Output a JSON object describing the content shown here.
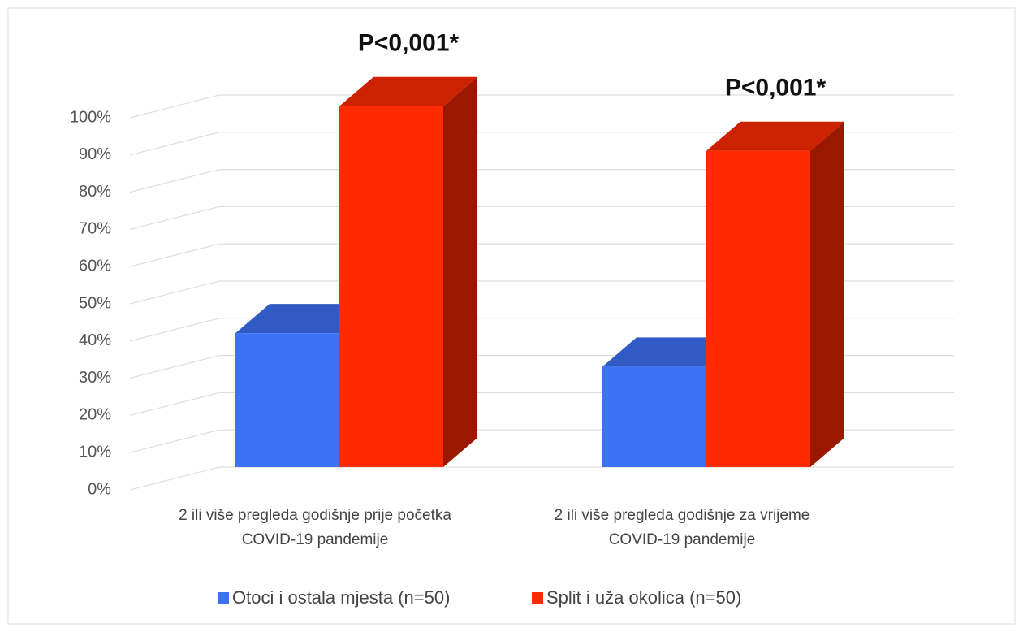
{
  "chart_data": {
    "type": "bar3d",
    "categories": [
      "2 ili više pregleda godišnje prije početka COVID-19 pandemije",
      "2 ili više pregleda godišnje za vrijeme COVID-19 pandemije"
    ],
    "series": [
      {
        "name": "Otoci i ostala mjesta (n=50)",
        "color": "#3d72f5",
        "values": [
          36,
          27
        ]
      },
      {
        "name": "Split i uža okolica (n=50)",
        "color": "#ff2a00",
        "values": [
          97,
          85
        ]
      }
    ],
    "annotations": [
      "P<0,001*",
      "P<0,001*"
    ],
    "ylim": [
      0,
      100
    ],
    "yticks": [
      {
        "value": 0,
        "label": "0%"
      },
      {
        "value": 10,
        "label": "10%"
      },
      {
        "value": 20,
        "label": "20%"
      },
      {
        "value": 30,
        "label": "30%"
      },
      {
        "value": 40,
        "label": "40%"
      },
      {
        "value": 50,
        "label": "50%"
      },
      {
        "value": 60,
        "label": "60%"
      },
      {
        "value": 70,
        "label": "70%"
      },
      {
        "value": 80,
        "label": "80%"
      },
      {
        "value": 90,
        "label": "90%"
      },
      {
        "value": 100,
        "label": "100%"
      }
    ],
    "grid": true,
    "legend": "bottom"
  }
}
